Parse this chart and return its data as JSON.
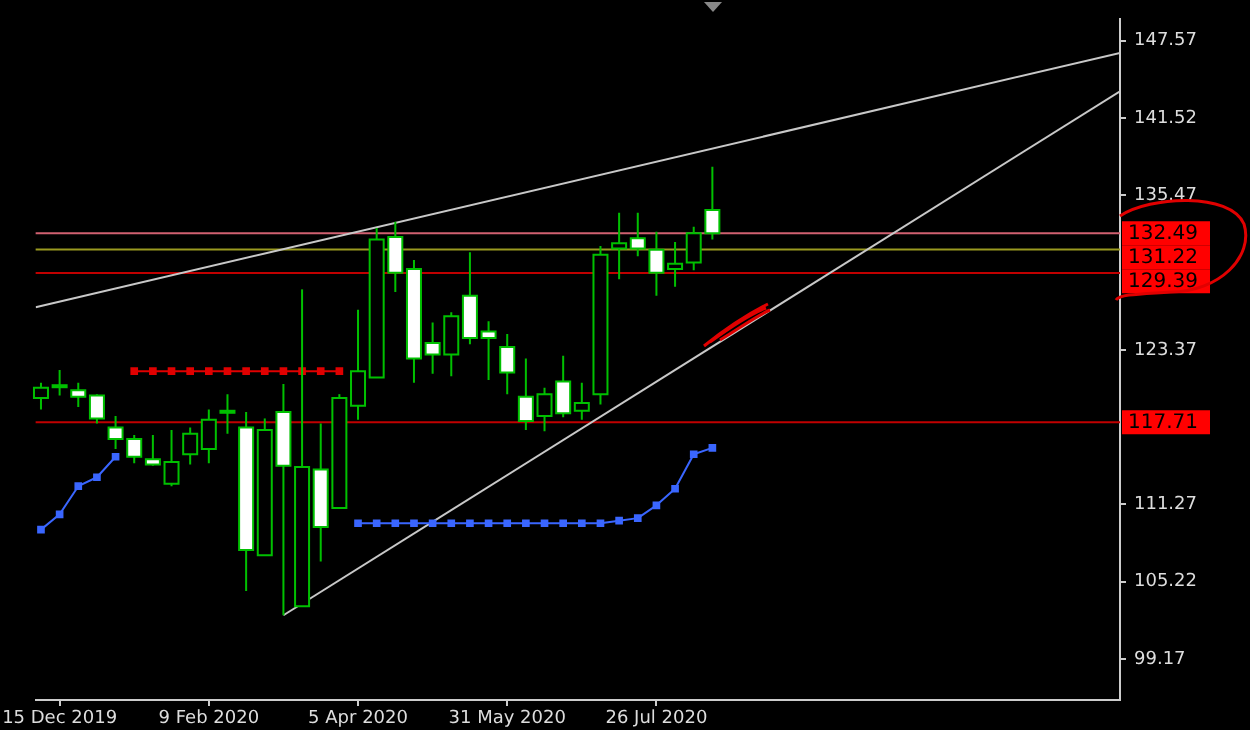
{
  "chart_data": {
    "type": "candlestick",
    "series": [
      {
        "color": "#00c000",
        "x": [
          "2019-12-08",
          "2019-12-15",
          "2019-12-22",
          "2019-12-29",
          "2020-01-05",
          "2020-01-12",
          "2020-01-19",
          "2020-01-26",
          "2020-02-02",
          "2020-02-09",
          "2020-02-16",
          "2020-02-23",
          "2020-03-01",
          "2020-03-08",
          "2020-03-15",
          "2020-03-22",
          "2020-03-29",
          "2020-04-05",
          "2020-04-12",
          "2020-04-19",
          "2020-04-26",
          "2020-05-03",
          "2020-05-10",
          "2020-05-17",
          "2020-05-24",
          "2020-05-31",
          "2020-06-07",
          "2020-06-14",
          "2020-06-21",
          "2020-06-28",
          "2020-07-05",
          "2020-07-12",
          "2020-07-19",
          "2020-07-26",
          "2020-08-02",
          "2020-08-09",
          "2020-08-16"
        ],
        "ohlc": [
          [
            119.6,
            120.8,
            118.7,
            120.4
          ],
          [
            120.5,
            121.8,
            119.8,
            120.6
          ],
          [
            120.2,
            120.8,
            118.9,
            119.7
          ],
          [
            119.8,
            119.9,
            117.6,
            118.0
          ],
          [
            117.3,
            118.2,
            115.6,
            116.4
          ],
          [
            116.4,
            116.7,
            114.5,
            115.0
          ],
          [
            114.8,
            116.7,
            114.3,
            114.4
          ],
          [
            112.9,
            117.1,
            112.7,
            114.6
          ],
          [
            115.2,
            117.3,
            114.4,
            116.8
          ],
          [
            115.6,
            118.7,
            114.5,
            117.9
          ],
          [
            118.5,
            119.9,
            116.8,
            118.6
          ],
          [
            117.3,
            118.5,
            104.5,
            107.7
          ],
          [
            107.3,
            118.0,
            107.3,
            117.1
          ],
          [
            118.5,
            120.7,
            102.6,
            114.3
          ],
          [
            103.3,
            128.1,
            103.3,
            114.2
          ],
          [
            114.0,
            117.6,
            106.8,
            109.5
          ],
          [
            111.0,
            119.9,
            111.0,
            119.6
          ],
          [
            119.0,
            126.5,
            117.9,
            121.7
          ],
          [
            121.2,
            132.9,
            121.2,
            132.0
          ],
          [
            132.2,
            133.4,
            127.9,
            129.4
          ],
          [
            129.7,
            130.4,
            120.8,
            122.7
          ],
          [
            123.9,
            125.5,
            121.5,
            123.0
          ],
          [
            123.0,
            126.3,
            121.3,
            126.0
          ],
          [
            127.6,
            131.0,
            123.8,
            124.3
          ],
          [
            124.8,
            125.6,
            121.0,
            124.3
          ],
          [
            123.6,
            124.6,
            119.9,
            121.6
          ],
          [
            119.7,
            122.7,
            117.1,
            117.8
          ],
          [
            118.2,
            120.4,
            117.0,
            119.9
          ],
          [
            120.9,
            122.9,
            118.1,
            118.4
          ],
          [
            118.6,
            120.8,
            117.9,
            119.2
          ],
          [
            119.9,
            131.5,
            119.1,
            130.8
          ],
          [
            131.3,
            134.1,
            128.9,
            131.7
          ],
          [
            132.1,
            134.1,
            130.7,
            131.3
          ],
          [
            131.2,
            132.6,
            127.6,
            129.4
          ],
          [
            129.7,
            131.8,
            128.3,
            130.1
          ],
          [
            130.2,
            133.0,
            129.6,
            132.5
          ],
          [
            134.3,
            137.7,
            132.0,
            132.49
          ]
        ],
        "colors": [
          "#000000",
          "#000000",
          "#ffffff",
          "#ffffff",
          "#ffffff",
          "#ffffff",
          "#ffffff",
          "#000000",
          "#000000",
          "#000000",
          "#000000",
          "#ffffff",
          "#000000",
          "#ffffff",
          "#000000",
          "#ffffff",
          "#000000",
          "#000000",
          "#000000",
          "#ffffff",
          "#ffffff",
          "#ffffff",
          "#000000",
          "#ffffff",
          "#ffffff",
          "#ffffff",
          "#ffffff",
          "#000000",
          "#ffffff",
          "#000000",
          "#000000",
          "#000000",
          "#ffffff",
          "#ffffff",
          "#000000",
          "#000000",
          "#ffffff"
        ]
      },
      {
        "type": "line",
        "color": "#e00000",
        "marker": "square",
        "x": [
          "2020-01-12",
          "2020-01-19",
          "2020-01-26",
          "2020-02-02",
          "2020-02-09",
          "2020-02-16",
          "2020-02-23",
          "2020-03-01",
          "2020-03-08",
          "2020-03-15",
          "2020-03-22",
          "2020-03-29"
        ],
        "values": [
          121.7,
          121.7,
          121.7,
          121.7,
          121.7,
          121.7,
          121.7,
          121.7,
          121.7,
          121.7,
          121.7,
          121.7
        ]
      },
      {
        "type": "line",
        "color": "#3a66ff",
        "marker": "square",
        "x": [
          "2019-12-08",
          "2019-12-15",
          "2019-12-22",
          "2019-12-29",
          "2020-01-05"
        ],
        "values": [
          109.3,
          110.5,
          112.7,
          113.4,
          115.0
        ]
      },
      {
        "type": "line",
        "color": "#3a66ff",
        "marker": "square",
        "x": [
          "2020-04-05",
          "2020-04-12",
          "2020-04-19",
          "2020-04-26",
          "2020-05-03",
          "2020-05-10",
          "2020-05-17",
          "2020-05-24",
          "2020-05-31",
          "2020-06-07",
          "2020-06-14",
          "2020-06-21",
          "2020-06-28",
          "2020-07-05",
          "2020-07-12",
          "2020-07-19",
          "2020-07-26",
          "2020-08-02",
          "2020-08-09",
          "2020-08-16"
        ],
        "values": [
          109.8,
          109.8,
          109.8,
          109.8,
          109.8,
          109.8,
          109.8,
          109.8,
          109.8,
          109.8,
          109.8,
          109.8,
          109.8,
          109.8,
          110.0,
          110.2,
          111.2,
          112.5,
          115.2,
          115.7
        ]
      },
      {
        "type": "line",
        "color": "#c8c8c8",
        "marker": "none",
        "x": [
          "2019-12-06",
          "2021-01-16"
        ],
        "values": [
          126.7,
          146.6
        ]
      },
      {
        "type": "line",
        "color": "#c8c8c8",
        "marker": "none",
        "x": [
          "2020-03-08",
          "2021-01-16"
        ],
        "values": [
          102.6,
          143.6
        ]
      }
    ],
    "xlim": [
      "2019-12-06",
      "2021-01-16"
    ],
    "xticks": [
      {
        "value": "2019-12-15",
        "label": "15 Dec 2019"
      },
      {
        "value": "2020-02-09",
        "label": "9 Feb 2020"
      },
      {
        "value": "2020-04-05",
        "label": "5 Apr 2020"
      },
      {
        "value": "2020-05-31",
        "label": "31 May 2020"
      },
      {
        "value": "2020-07-26",
        "label": "26 Jul 2020"
      }
    ],
    "ylim": [
      95.97,
      149.27
    ],
    "yticks": [
      99.17,
      105.22,
      111.27,
      123.37,
      135.47,
      141.52,
      147.57
    ],
    "ref_lines": [
      {
        "axis": "y",
        "value": 132.49,
        "label": "132.49",
        "color": "#d06070"
      },
      {
        "axis": "y",
        "value": 131.22,
        "label": "131.22",
        "color": "#9a9a20"
      },
      {
        "axis": "y",
        "value": 129.39,
        "label": "129.39",
        "color": "#c00000"
      },
      {
        "axis": "y",
        "value": 117.71,
        "label": "117.71",
        "color": "#c00000"
      }
    ],
    "grid": false,
    "legend": false
  }
}
